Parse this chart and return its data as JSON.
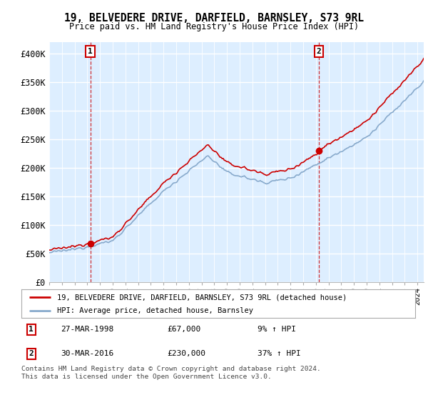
{
  "title": "19, BELVEDERE DRIVE, DARFIELD, BARNSLEY, S73 9RL",
  "subtitle": "Price paid vs. HM Land Registry's House Price Index (HPI)",
  "ylim": [
    0,
    420000
  ],
  "yticks": [
    0,
    50000,
    100000,
    150000,
    200000,
    250000,
    300000,
    350000,
    400000
  ],
  "ytick_labels": [
    "£0",
    "£50K",
    "£100K",
    "£150K",
    "£200K",
    "£250K",
    "£300K",
    "£350K",
    "£400K"
  ],
  "legend_line1": "19, BELVEDERE DRIVE, DARFIELD, BARNSLEY, S73 9RL (detached house)",
  "legend_line2": "HPI: Average price, detached house, Barnsley",
  "line1_color": "#cc0000",
  "line2_color": "#88aacc",
  "marker_color": "#cc0000",
  "sale1_date": "27-MAR-1998",
  "sale1_price": "£67,000",
  "sale1_hpi": "9% ↑ HPI",
  "sale1_x": 1998.24,
  "sale1_y": 67000,
  "sale2_date": "30-MAR-2016",
  "sale2_price": "£230,000",
  "sale2_hpi": "37% ↑ HPI",
  "sale2_x": 2016.24,
  "sale2_y": 230000,
  "footnote": "Contains HM Land Registry data © Crown copyright and database right 2024.\nThis data is licensed under the Open Government Licence v3.0.",
  "background_color": "#ffffff",
  "plot_bg_color": "#ddeeff",
  "xlim_start": 1995,
  "xlim_end": 2024.5
}
